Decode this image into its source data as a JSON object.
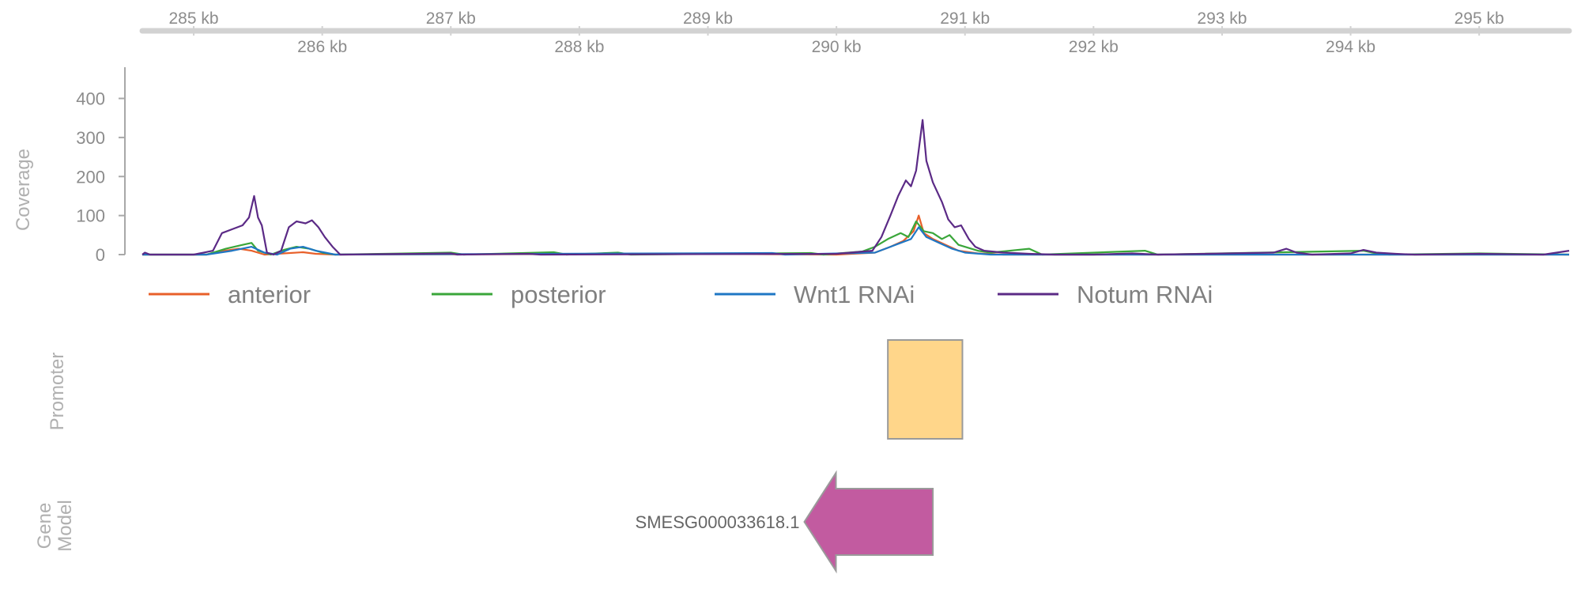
{
  "chart_data": {
    "type": "line",
    "genome_axis": {
      "unit": "kb",
      "range": [
        284.6,
        295.7
      ],
      "ticks_top": [
        {
          "pos": 285,
          "label": "285 kb"
        },
        {
          "pos": 287,
          "label": "287 kb"
        },
        {
          "pos": 289,
          "label": "289 kb"
        },
        {
          "pos": 291,
          "label": "291 kb"
        },
        {
          "pos": 293,
          "label": "293 kb"
        },
        {
          "pos": 295,
          "label": "295 kb"
        }
      ],
      "ticks_bottom": [
        {
          "pos": 286,
          "label": "286 kb"
        },
        {
          "pos": 288,
          "label": "288 kb"
        },
        {
          "pos": 290,
          "label": "290 kb"
        },
        {
          "pos": 292,
          "label": "292 kb"
        },
        {
          "pos": 294,
          "label": "294 kb"
        }
      ]
    },
    "coverage": {
      "ylabel": "Coverage",
      "ylim": [
        0,
        480
      ],
      "yticks": [
        0,
        100,
        200,
        300,
        400
      ],
      "series": [
        {
          "name": "anterior",
          "color": "#e8602a",
          "points": [
            [
              284.6,
              0
            ],
            [
              285.1,
              0
            ],
            [
              285.2,
              8
            ],
            [
              285.35,
              15
            ],
            [
              285.45,
              10
            ],
            [
              285.55,
              0
            ],
            [
              285.7,
              3
            ],
            [
              285.85,
              6
            ],
            [
              285.95,
              2
            ],
            [
              286.1,
              0
            ],
            [
              289.0,
              2
            ],
            [
              290.0,
              0
            ],
            [
              290.3,
              5
            ],
            [
              290.42,
              20
            ],
            [
              290.52,
              35
            ],
            [
              290.6,
              60
            ],
            [
              290.64,
              100
            ],
            [
              290.68,
              55
            ],
            [
              290.75,
              40
            ],
            [
              290.85,
              25
            ],
            [
              290.95,
              10
            ],
            [
              291.1,
              3
            ],
            [
              291.3,
              0
            ],
            [
              295.7,
              0
            ]
          ]
        },
        {
          "name": "posterior",
          "color": "#3aa63a",
          "points": [
            [
              284.6,
              0
            ],
            [
              285.1,
              0
            ],
            [
              285.25,
              15
            ],
            [
              285.38,
              25
            ],
            [
              285.45,
              30
            ],
            [
              285.5,
              10
            ],
            [
              285.6,
              0
            ],
            [
              285.7,
              12
            ],
            [
              285.8,
              20
            ],
            [
              285.9,
              15
            ],
            [
              286.0,
              5
            ],
            [
              286.1,
              0
            ],
            [
              287.0,
              5
            ],
            [
              287.1,
              0
            ],
            [
              287.8,
              6
            ],
            [
              287.9,
              0
            ],
            [
              288.3,
              5
            ],
            [
              288.4,
              0
            ],
            [
              289.8,
              4
            ],
            [
              289.9,
              0
            ],
            [
              290.2,
              8
            ],
            [
              290.3,
              20
            ],
            [
              290.4,
              40
            ],
            [
              290.5,
              55
            ],
            [
              290.56,
              45
            ],
            [
              290.62,
              85
            ],
            [
              290.68,
              60
            ],
            [
              290.75,
              55
            ],
            [
              290.82,
              40
            ],
            [
              290.88,
              50
            ],
            [
              290.95,
              25
            ],
            [
              291.1,
              10
            ],
            [
              291.2,
              5
            ],
            [
              291.5,
              15
            ],
            [
              291.6,
              0
            ],
            [
              292.4,
              10
            ],
            [
              292.5,
              0
            ],
            [
              294.1,
              10
            ],
            [
              294.2,
              3
            ],
            [
              294.3,
              0
            ],
            [
              295.0,
              3
            ],
            [
              295.7,
              0
            ]
          ]
        },
        {
          "name": "Wnt1 RNAi",
          "color": "#1f77c4",
          "points": [
            [
              284.6,
              0
            ],
            [
              285.1,
              0
            ],
            [
              285.3,
              10
            ],
            [
              285.45,
              20
            ],
            [
              285.55,
              5
            ],
            [
              285.65,
              0
            ],
            [
              285.75,
              15
            ],
            [
              285.85,
              20
            ],
            [
              285.95,
              10
            ],
            [
              286.1,
              0
            ],
            [
              289.5,
              4
            ],
            [
              289.6,
              0
            ],
            [
              290.3,
              5
            ],
            [
              290.42,
              20
            ],
            [
              290.5,
              30
            ],
            [
              290.58,
              40
            ],
            [
              290.64,
              70
            ],
            [
              290.7,
              45
            ],
            [
              290.8,
              30
            ],
            [
              290.9,
              15
            ],
            [
              291.0,
              5
            ],
            [
              291.2,
              0
            ],
            [
              295.7,
              0
            ]
          ]
        },
        {
          "name": "Notum RNAi",
          "color": "#5b2a86",
          "points": [
            [
              284.6,
              0
            ],
            [
              284.62,
              5
            ],
            [
              284.66,
              0
            ],
            [
              285.0,
              0
            ],
            [
              285.15,
              10
            ],
            [
              285.22,
              55
            ],
            [
              285.3,
              65
            ],
            [
              285.38,
              75
            ],
            [
              285.43,
              95
            ],
            [
              285.47,
              150
            ],
            [
              285.5,
              95
            ],
            [
              285.53,
              75
            ],
            [
              285.57,
              5
            ],
            [
              285.62,
              0
            ],
            [
              285.68,
              10
            ],
            [
              285.74,
              70
            ],
            [
              285.8,
              85
            ],
            [
              285.87,
              80
            ],
            [
              285.92,
              88
            ],
            [
              285.97,
              70
            ],
            [
              286.02,
              45
            ],
            [
              286.08,
              20
            ],
            [
              286.14,
              0
            ],
            [
              287.0,
              3
            ],
            [
              287.05,
              0
            ],
            [
              287.6,
              2
            ],
            [
              287.7,
              0
            ],
            [
              290.0,
              2
            ],
            [
              290.28,
              10
            ],
            [
              290.35,
              45
            ],
            [
              290.42,
              100
            ],
            [
              290.48,
              150
            ],
            [
              290.54,
              190
            ],
            [
              290.58,
              175
            ],
            [
              290.62,
              215
            ],
            [
              290.67,
              345
            ],
            [
              290.7,
              240
            ],
            [
              290.75,
              185
            ],
            [
              290.82,
              135
            ],
            [
              290.87,
              90
            ],
            [
              290.92,
              70
            ],
            [
              290.97,
              75
            ],
            [
              291.03,
              40
            ],
            [
              291.08,
              20
            ],
            [
              291.15,
              10
            ],
            [
              291.3,
              5
            ],
            [
              291.5,
              2
            ],
            [
              291.7,
              0
            ],
            [
              292.0,
              0
            ],
            [
              292.3,
              3
            ],
            [
              292.5,
              0
            ],
            [
              293.4,
              5
            ],
            [
              293.5,
              15
            ],
            [
              293.58,
              5
            ],
            [
              293.7,
              0
            ],
            [
              294.0,
              3
            ],
            [
              294.1,
              12
            ],
            [
              294.2,
              5
            ],
            [
              294.35,
              2
            ],
            [
              294.5,
              0
            ],
            [
              295.0,
              2
            ],
            [
              295.5,
              0
            ],
            [
              295.7,
              10
            ]
          ]
        }
      ]
    },
    "promoter": {
      "track_title": "Promoter",
      "start": 290.4,
      "end": 290.98,
      "color": "#ffd68a"
    },
    "gene_model": {
      "track_title": [
        "Gene",
        "Model"
      ],
      "name": "SMESG000033618.1",
      "start": 289.75,
      "end": 290.75,
      "strand": "-",
      "color": "#c25ba0"
    }
  }
}
